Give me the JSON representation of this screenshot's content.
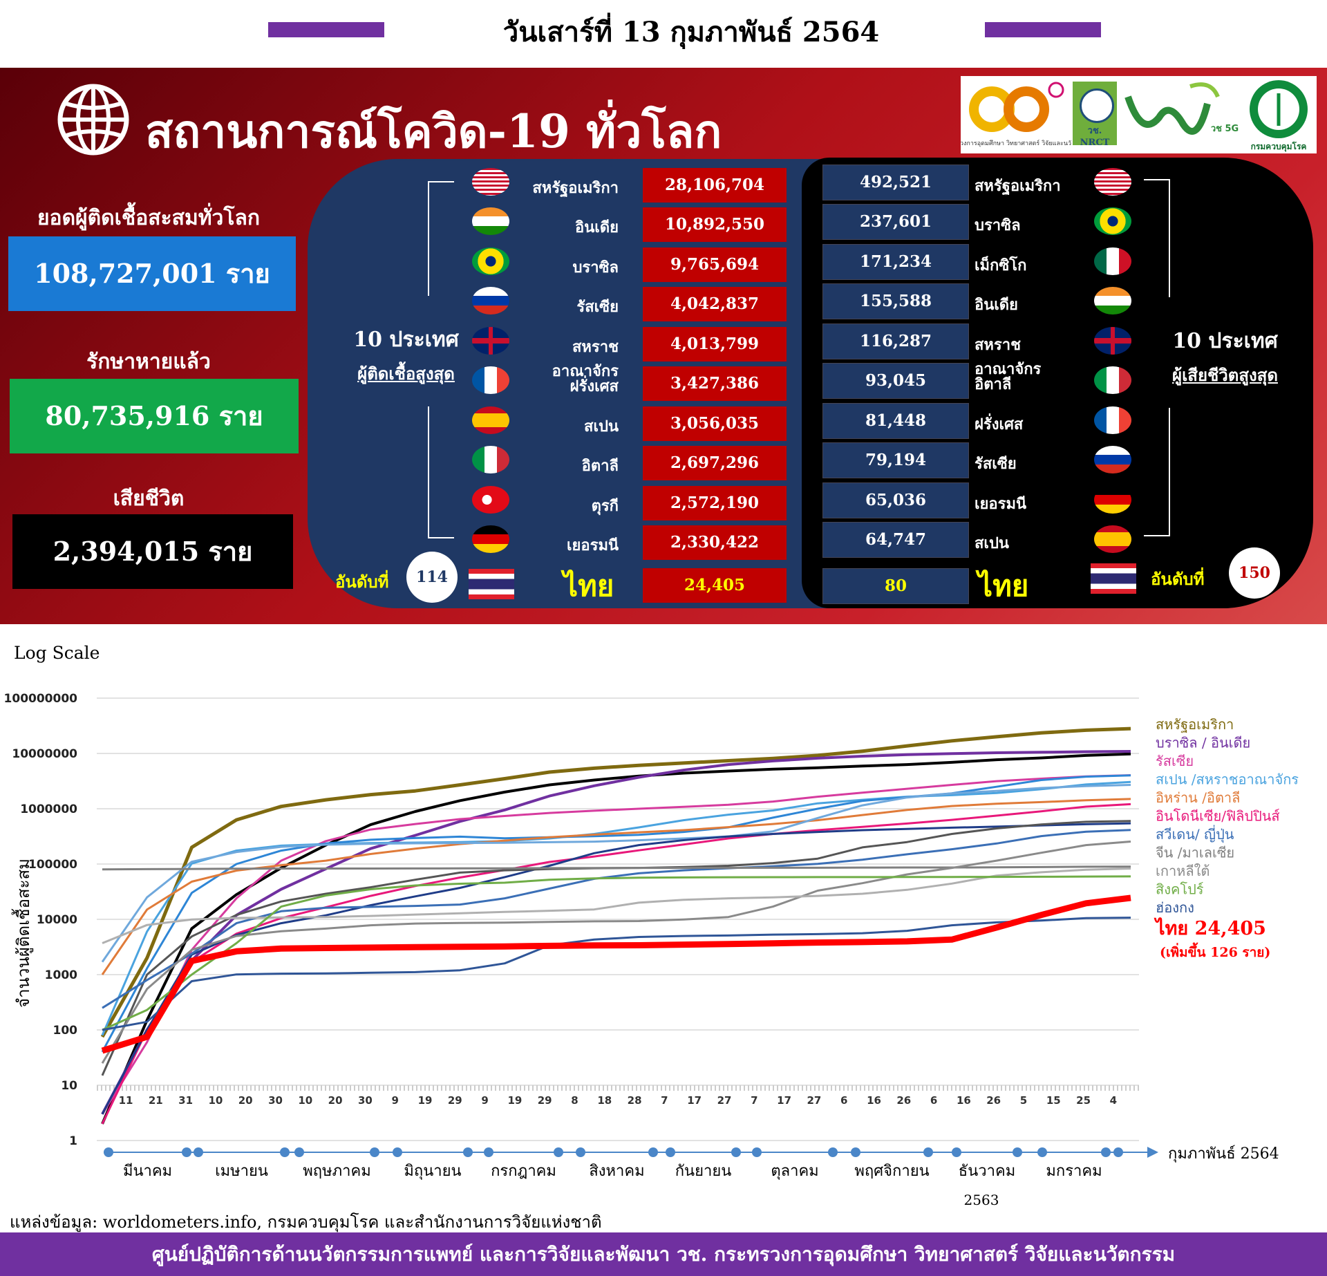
{
  "header": {
    "date": "วันเสาร์ที่ 13 กุมภาพันธ์ 2564"
  },
  "panel": {
    "title": "สถานการณ์โควิด-19 ทั่วโลก",
    "logos": [
      "กระทรวงการอุดมศึกษา วิทยาศาสตร์ วิจัยและนวัตกรรม",
      "วช. NRCT",
      "วช 5G",
      "กรมควบคุมโรค"
    ],
    "stats": {
      "total_label": "ยอดผู้ติดเชื้อสะสมทั่วโลก",
      "total_value": "108,727,001 ราย",
      "recovered_label": "รักษาหายแล้ว",
      "recovered_value": "80,735,916 ราย",
      "deaths_label": "เสียชีวิต",
      "deaths_value": "2,394,015 ราย"
    },
    "colors": {
      "total_box": "#1a7ad4",
      "recovered_box": "#12a84a",
      "deaths_box": "#000000",
      "cases_cell": "#c00000",
      "deaths_cell": "#1f3864"
    }
  },
  "top_cases": {
    "title_line1": "10 ประเทศ",
    "title_line2": "ผู้ติดเชื้อสูงสุด",
    "rows": [
      {
        "country": "สหรัฐอเมริกา",
        "flag": "us-flag",
        "value": "28,106,704"
      },
      {
        "country": "อินเดีย",
        "flag": "india-flag",
        "value": "10,892,550"
      },
      {
        "country": "บราซิล",
        "flag": "brazil-flag",
        "value": "9,765,694"
      },
      {
        "country": "รัสเซีย",
        "flag": "russia-flag",
        "value": "4,042,837"
      },
      {
        "country": "สหราชอาณาจักร",
        "flag": "uk-flag",
        "value": "4,013,799"
      },
      {
        "country": "ฝรั่งเศส",
        "flag": "france-flag",
        "value": "3,427,386"
      },
      {
        "country": "สเปน",
        "flag": "spain-flag",
        "value": "3,056,035"
      },
      {
        "country": "อิตาลี",
        "flag": "italy-flag",
        "value": "2,697,296"
      },
      {
        "country": "ตุรกี",
        "flag": "turkey-flag",
        "value": "2,572,190"
      },
      {
        "country": "เยอรมนี",
        "flag": "germany-flag",
        "value": "2,330,422"
      }
    ],
    "thai": {
      "rank_label": "อันดับที่",
      "rank": "114",
      "country": "ไทย",
      "value": "24,405"
    }
  },
  "top_deaths": {
    "title_line1": "10 ประเทศ",
    "title_line2": "ผู้เสียชีวิตสูงสุด",
    "rows": [
      {
        "country": "สหรัฐอเมริกา",
        "flag": "us-flag",
        "value": "492,521"
      },
      {
        "country": "บราซิล",
        "flag": "brazil-flag",
        "value": "237,601"
      },
      {
        "country": "เม็กซิโก",
        "flag": "mexico-flag",
        "value": "171,234"
      },
      {
        "country": "อินเดีย",
        "flag": "india-flag",
        "value": "155,588"
      },
      {
        "country": "สหราชอาณาจักร",
        "flag": "uk-flag",
        "value": "116,287"
      },
      {
        "country": "อิตาลี",
        "flag": "italy-flag",
        "value": "93,045"
      },
      {
        "country": "ฝรั่งเศส",
        "flag": "france-flag",
        "value": "81,448"
      },
      {
        "country": "รัสเซีย",
        "flag": "russia-flag",
        "value": "79,194"
      },
      {
        "country": "เยอรมนี",
        "flag": "germany-flag",
        "value": "65,036"
      },
      {
        "country": "สเปน",
        "flag": "spain-flag",
        "value": "64,747"
      }
    ],
    "thai": {
      "rank_label": "อันดับที่",
      "rank": "150",
      "country": "ไทย",
      "value": "80"
    }
  },
  "chart_data": {
    "type": "line",
    "scale_label": "Log Scale",
    "ylabel": "จำนวนผู้ติดเชื้อสะสม",
    "yscale": "log",
    "ylim": [
      1,
      100000000
    ],
    "yticks": [
      "1",
      "10",
      "100",
      "1000",
      "10000",
      "100000",
      "1000000",
      "10000000",
      "100000000"
    ],
    "x_ticks": [
      "11",
      "21",
      "31",
      "10",
      "20",
      "30",
      "10",
      "20",
      "30",
      "9",
      "19",
      "29",
      "9",
      "19",
      "29",
      "8",
      "18",
      "28",
      "7",
      "17",
      "27",
      "7",
      "17",
      "27",
      "6",
      "16",
      "26",
      "6",
      "16",
      "26",
      "5",
      "15",
      "25",
      "4"
    ],
    "months": [
      "มีนาคม",
      "เมษายน",
      "พฤษภาคม",
      "มิถุนายน",
      "กรกฎาคม",
      "สิงหาคม",
      "กันยายน",
      "ตุลาคม",
      "พฤศจิกายน",
      "ธันวาคม",
      "มกราคม"
    ],
    "end_label": "กุมภาพันธ์ 2564",
    "year_label": "2563",
    "x": [
      "Mar-01",
      "Mar-15",
      "Apr-01",
      "Apr-15",
      "May-01",
      "May-15",
      "Jun-01",
      "Jun-15",
      "Jul-01",
      "Jul-15",
      "Aug-01",
      "Aug-15",
      "Sep-01",
      "Sep-15",
      "Oct-01",
      "Oct-15",
      "Nov-01",
      "Nov-15",
      "Dec-01",
      "Dec-15",
      "Jan-01",
      "Jan-15",
      "Feb-01",
      "Feb-13"
    ],
    "series": [
      {
        "name": "สหรัฐอเมริกา",
        "color": "#7f6a10",
        "width": 5,
        "values": [
          75,
          2000,
          200000,
          630000,
          1100000,
          1450000,
          1800000,
          2100000,
          2700000,
          3500000,
          4600000,
          5400000,
          6100000,
          6700000,
          7400000,
          8100000,
          9200000,
          11000000,
          13700000,
          16900000,
          20000000,
          23500000,
          26300000,
          28106704
        ]
      },
      {
        "name": "บราซิล",
        "color": "#000000",
        "width": 4,
        "values": [
          2,
          150,
          6800,
          28000,
          85000,
          220000,
          515000,
          890000,
          1400000,
          2000000,
          2700000,
          3300000,
          3900000,
          4400000,
          4800000,
          5200000,
          5500000,
          5900000,
          6300000,
          6900000,
          7700000,
          8300000,
          9200000,
          9765694
        ]
      },
      {
        "name": "อินเดีย",
        "color": "#7030a0",
        "width": 4,
        "values": [
          3,
          100,
          1800,
          11900,
          35000,
          82000,
          190000,
          330000,
          590000,
          950000,
          1700000,
          2600000,
          3700000,
          5000000,
          6300000,
          7300000,
          8200000,
          8900000,
          9500000,
          9900000,
          10300000,
          10500000,
          10750000,
          10892550
        ]
      },
      {
        "name": "รัสเซีย",
        "color": "#d63b9e",
        "width": 3,
        "values": [
          3,
          60,
          2800,
          24000,
          115000,
          260000,
          420000,
          530000,
          650000,
          740000,
          840000,
          920000,
          1000000,
          1080000,
          1180000,
          1350000,
          1650000,
          1950000,
          2300000,
          2700000,
          3150000,
          3500000,
          3850000,
          4042837
        ]
      },
      {
        "name": "สเปน",
        "color": "#4aa3df",
        "width": 3,
        "values": [
          80,
          6000,
          102000,
          175000,
          215000,
          230000,
          240000,
          244000,
          250000,
          260000,
          290000,
          350000,
          460000,
          620000,
          780000,
          930000,
          1250000,
          1450000,
          1650000,
          1760000,
          1930000,
          2250000,
          2750000,
          3056035
        ]
      },
      {
        "name": "สหราชอาณาจักร",
        "color": "#2e86d6",
        "width": 3,
        "values": [
          40,
          1300,
          30000,
          100000,
          175000,
          235000,
          275000,
          295000,
          313000,
          293000,
          305000,
          318000,
          338000,
          380000,
          460000,
          690000,
          1000000,
          1390000,
          1620000,
          1900000,
          2500000,
          3300000,
          3800000,
          4013799
        ]
      },
      {
        "name": "อิหร่าน",
        "color": "#e07b39",
        "width": 3,
        "values": [
          1000,
          15000,
          48000,
          76000,
          95000,
          115000,
          152000,
          190000,
          230000,
          265000,
          305000,
          340000,
          375000,
          410000,
          465000,
          530000,
          620000,
          770000,
          950000,
          1120000,
          1230000,
          1320000,
          1420000,
          1500000
        ]
      },
      {
        "name": "อิตาลี",
        "color": "#6fa8dc",
        "width": 3,
        "values": [
          1700,
          25000,
          110000,
          165000,
          205000,
          224000,
          233000,
          237000,
          240000,
          243000,
          248000,
          254000,
          269000,
          290000,
          315000,
          390000,
          680000,
          1150000,
          1600000,
          1890000,
          2100000,
          2370000,
          2560000,
          2697296
        ]
      },
      {
        "name": "อินโดนีเซีย",
        "color": "#e8187a",
        "width": 3,
        "values": [
          2,
          100,
          1700,
          5500,
          10500,
          16500,
          26500,
          40000,
          57000,
          78000,
          109000,
          137000,
          177000,
          225000,
          290000,
          350000,
          410000,
          470000,
          540000,
          630000,
          750000,
          900000,
          1090000,
          1210000
        ]
      },
      {
        "name": "ฟิลิปปินส์",
        "color": "#1f3c88",
        "width": 3,
        "values": [
          3,
          100,
          2300,
          5200,
          8500,
          11800,
          18000,
          26000,
          37000,
          58000,
          93000,
          157000,
          220000,
          270000,
          315000,
          350000,
          380000,
          410000,
          430000,
          455000,
          475000,
          500000,
          525000,
          545000
        ]
      },
      {
        "name": "สวีเดน",
        "color": "#555555",
        "width": 3,
        "values": [
          15,
          1000,
          4900,
          12000,
          21000,
          29000,
          38000,
          52000,
          70000,
          77000,
          81000,
          84000,
          85000,
          88000,
          93000,
          104000,
          125000,
          200000,
          250000,
          350000,
          440000,
          520000,
          580000,
          600000
        ]
      },
      {
        "name": "ญี่ปุ่น",
        "color": "#3b6fb6",
        "width": 3,
        "values": [
          250,
          800,
          2400,
          8500,
          14000,
          16200,
          16800,
          17500,
          18500,
          24000,
          36000,
          54000,
          68000,
          77000,
          84000,
          91000,
          101000,
          120000,
          150000,
          185000,
          235000,
          320000,
          385000,
          413000
        ]
      },
      {
        "name": "จีน",
        "color": "#7f7f7f",
        "width": 3,
        "values": [
          80000,
          80800,
          81600,
          82300,
          82900,
          82950,
          83000,
          83200,
          83500,
          83600,
          84300,
          84800,
          85100,
          85200,
          85400,
          85600,
          85700,
          86300,
          86500,
          86700,
          87000,
          88000,
          89400,
          89700
        ]
      },
      {
        "name": "มาเลเซีย",
        "color": "#8a8a8a",
        "width": 3,
        "values": [
          25,
          550,
          2800,
          5000,
          6100,
          6800,
          7800,
          8400,
          8600,
          8700,
          8960,
          9200,
          9300,
          9900,
          11000,
          17000,
          33000,
          45000,
          65000,
          85000,
          115000,
          160000,
          220000,
          255000
        ]
      },
      {
        "name": "เกาหลีใต้",
        "color": "#b0b0b0",
        "width": 3,
        "values": [
          3700,
          7900,
          9900,
          10600,
          10800,
          11000,
          11500,
          12200,
          12900,
          13600,
          14300,
          15100,
          20000,
          22500,
          24000,
          25000,
          26500,
          29000,
          34200,
          44300,
          61800,
          71000,
          78800,
          83000
        ]
      },
      {
        "name": "สิงคโปร์",
        "color": "#70ad47",
        "width": 3,
        "values": [
          100,
          230,
          1000,
          3700,
          17000,
          27000,
          35000,
          41000,
          44000,
          46000,
          52000,
          55000,
          56500,
          57200,
          57700,
          57900,
          58000,
          58100,
          58200,
          58300,
          58500,
          58900,
          59400,
          59800
        ]
      },
      {
        "name": "ฮ่องกง",
        "color": "#2f5597",
        "width": 3,
        "values": [
          100,
          140,
          760,
          1010,
          1040,
          1050,
          1080,
          1110,
          1200,
          1600,
          3400,
          4300,
          4800,
          5000,
          5100,
          5300,
          5400,
          5600,
          6200,
          7800,
          8800,
          9500,
          10500,
          10700
        ]
      },
      {
        "name": "ไทย",
        "color": "#ff0000",
        "width": 9,
        "values": [
          42,
          75,
          1770,
          2640,
          2960,
          3030,
          3080,
          3140,
          3180,
          3240,
          3310,
          3380,
          3400,
          3490,
          3570,
          3680,
          3800,
          3880,
          3990,
          4300,
          7100,
          12000,
          19500,
          24405
        ]
      }
    ],
    "legend": [
      {
        "text": "สหรัฐอเมริกา",
        "color": "#7f6a10"
      },
      {
        "text": "บราซิล / อินเดีย",
        "color": "#7030a0"
      },
      {
        "text": "รัสเซีย",
        "color": "#d63b9e"
      },
      {
        "text": "สเปน /สหราชอาณาจักร",
        "color": "#4aa3df"
      },
      {
        "text": "อิหร่าน /อิตาลี",
        "color": "#e07b39"
      },
      {
        "text": "อินโดนีเซีย/ฟิลิปปินส์",
        "color": "#e8187a"
      },
      {
        "text": "สวีเดน/ ญี่ปุ่น",
        "color": "#3b6fb6"
      },
      {
        "text": "จีน /มาเลเซีย",
        "color": "#7f7f7f"
      },
      {
        "text": "เกาหลีใต้",
        "color": "#8a8a8a"
      },
      {
        "text": "สิงคโปร์",
        "color": "#70ad47"
      },
      {
        "text": "ฮ่องกง",
        "color": "#2f5597"
      }
    ],
    "thai_label": "ไทย 24,405",
    "thai_increase": "(เพิ่มขึ้น 126 ราย)"
  },
  "source": "แหล่งข้อมูล: worldometers.info, กรมควบคุมโรค และสำนักงานการวิจัยแห่งชาติ",
  "footer": "ศูนย์ปฏิบัติการด้านนวัตกรรมการแพทย์ และการวิจัยและพัฒนา วช. กระทรวงการอุดมศึกษา วิทยาศาสตร์ วิจัยและนวัตกรรม"
}
